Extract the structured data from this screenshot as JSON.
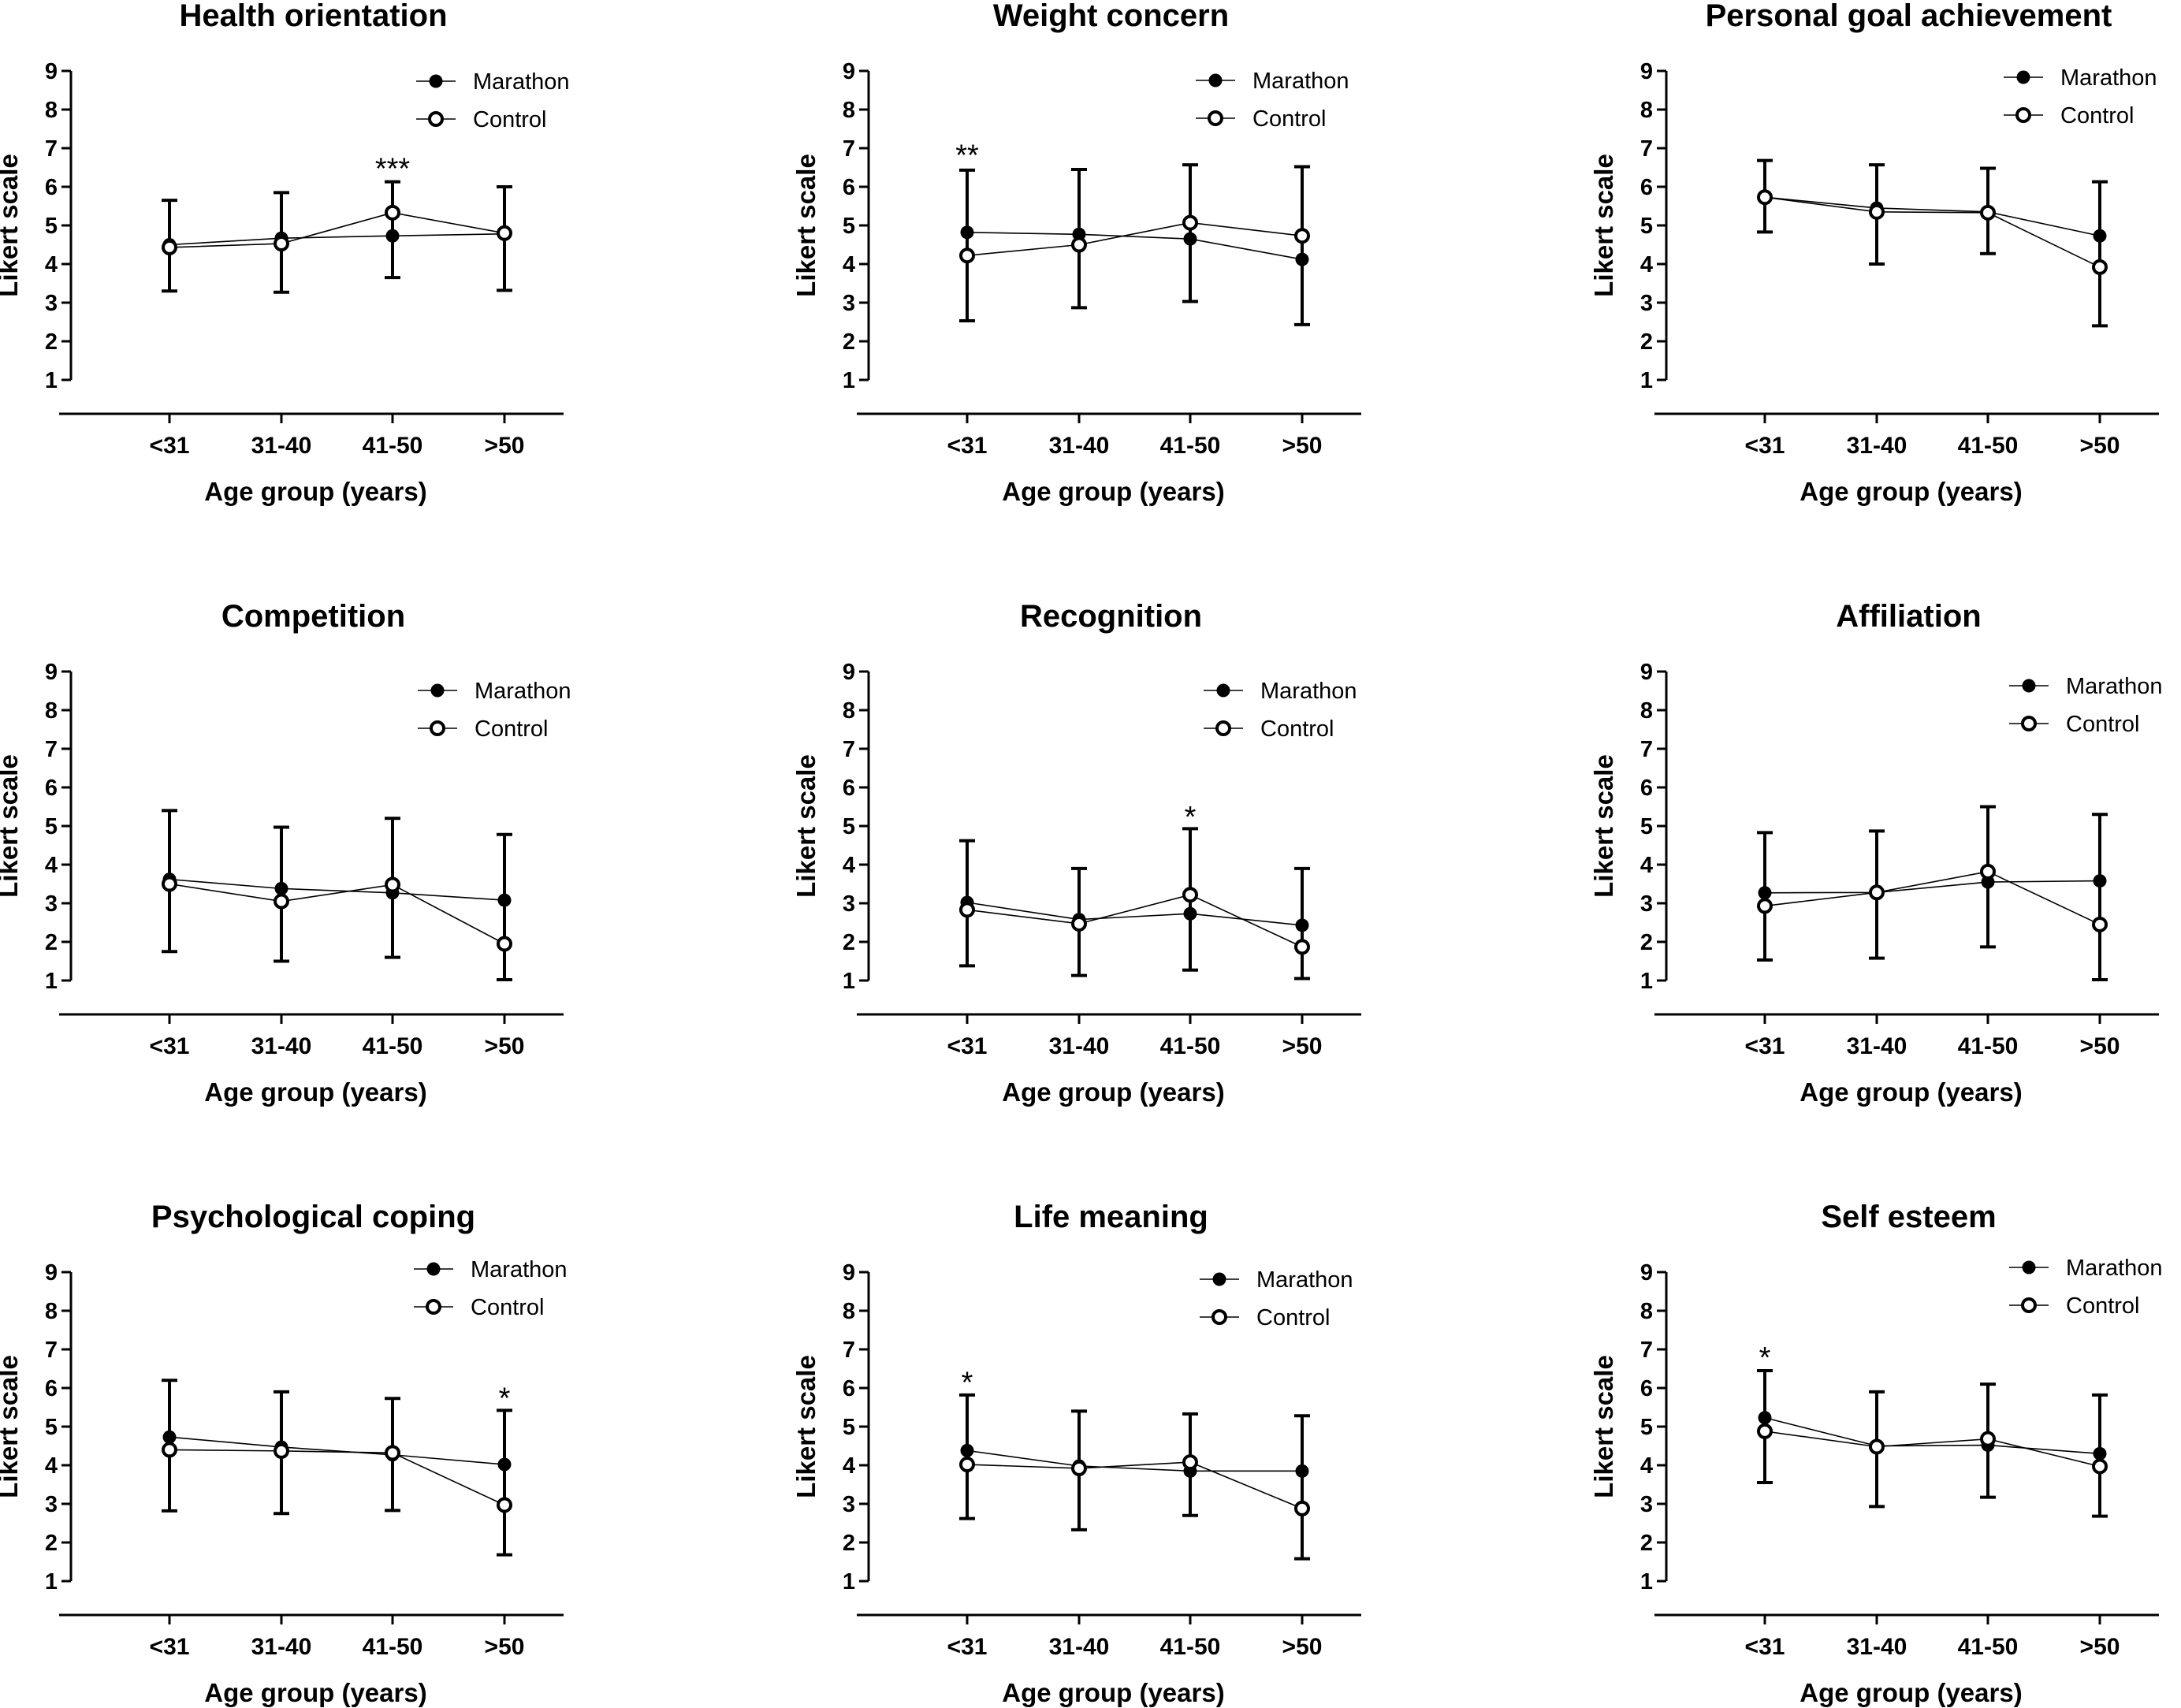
{
  "figure": {
    "categories": [
      "<31",
      "31-40",
      "41-50",
      ">50"
    ],
    "xlabel": "Age group (years)",
    "ylabel": "Likert scale",
    "legend": [
      "Marathon",
      "Control"
    ]
  },
  "chart_data": [
    {
      "type": "line",
      "title": "Health orientation",
      "xlabel": "Age group (years)",
      "ylabel": "Likert scale",
      "ylim": [
        1,
        9
      ],
      "yticks": [
        "1",
        "2",
        "3",
        "4",
        "5",
        "6",
        "7",
        "8",
        "9"
      ],
      "categories": [
        "<31",
        "31-40",
        "41-50",
        ">50"
      ],
      "series": [
        {
          "name": "Marathon",
          "values": [
            4.5,
            4.67,
            4.73,
            4.78
          ]
        },
        {
          "name": "Control",
          "values": [
            4.43,
            4.53,
            5.33,
            4.8
          ]
        }
      ],
      "error_bars": {
        "upper": [
          5.65,
          5.85,
          6.13,
          6.0
        ],
        "lower": [
          3.3,
          3.27,
          3.65,
          3.32
        ]
      },
      "annotations": [
        {
          "category": "41-50",
          "value": 6.5,
          "text": "***"
        }
      ],
      "legend_position": "top-right"
    },
    {
      "type": "line",
      "title": "Weight concern",
      "xlabel": "Age group (years)",
      "ylabel": "Likert scale",
      "ylim": [
        1,
        9
      ],
      "yticks": [
        "1",
        "2",
        "3",
        "4",
        "5",
        "6",
        "7",
        "8",
        "9"
      ],
      "categories": [
        "<31",
        "31-40",
        "41-50",
        ">50"
      ],
      "series": [
        {
          "name": "Marathon",
          "values": [
            4.82,
            4.77,
            4.65,
            4.12
          ]
        },
        {
          "name": "Control",
          "values": [
            4.22,
            4.5,
            5.07,
            4.73
          ]
        }
      ],
      "error_bars": {
        "upper": [
          6.43,
          6.45,
          6.57,
          6.52
        ],
        "lower": [
          2.53,
          2.87,
          3.03,
          2.43
        ]
      },
      "annotations": [
        {
          "category": "<31",
          "value": 6.85,
          "text": "**"
        }
      ],
      "legend_position": "top-right"
    },
    {
      "type": "line",
      "title": "Personal goal achievement",
      "xlabel": "Age group (years)",
      "ylabel": "Likert scale",
      "ylim": [
        1,
        9
      ],
      "yticks": [
        "1",
        "2",
        "3",
        "4",
        "5",
        "6",
        "7",
        "8",
        "9"
      ],
      "categories": [
        "<31",
        "31-40",
        "41-50",
        ">50"
      ],
      "series": [
        {
          "name": "Marathon",
          "values": [
            5.73,
            5.45,
            5.35,
            4.73
          ]
        },
        {
          "name": "Control",
          "values": [
            5.73,
            5.35,
            5.33,
            3.92
          ]
        }
      ],
      "error_bars": {
        "upper": [
          6.68,
          6.57,
          6.48,
          6.13
        ],
        "lower": [
          4.83,
          4.0,
          4.27,
          2.4
        ]
      },
      "annotations": [],
      "legend_position": "top-right"
    },
    {
      "type": "line",
      "title": "Competition",
      "xlabel": "Age group (years)",
      "ylabel": "Likert scale",
      "ylim": [
        1,
        9
      ],
      "yticks": [
        "1",
        "2",
        "3",
        "4",
        "5",
        "6",
        "7",
        "8",
        "9"
      ],
      "categories": [
        "<31",
        "31-40",
        "41-50",
        ">50"
      ],
      "series": [
        {
          "name": "Marathon",
          "values": [
            3.62,
            3.38,
            3.27,
            3.08
          ]
        },
        {
          "name": "Control",
          "values": [
            3.5,
            3.05,
            3.48,
            1.95
          ]
        }
      ],
      "error_bars": {
        "upper": [
          5.4,
          4.97,
          5.2,
          4.78
        ],
        "lower": [
          1.75,
          1.5,
          1.6,
          1.02
        ]
      },
      "annotations": [],
      "legend_position": "top-right"
    },
    {
      "type": "line",
      "title": "Recognition",
      "xlabel": "Age group (years)",
      "ylabel": "Likert scale",
      "ylim": [
        1,
        9
      ],
      "yticks": [
        "1",
        "2",
        "3",
        "4",
        "5",
        "6",
        "7",
        "8",
        "9"
      ],
      "categories": [
        "<31",
        "31-40",
        "41-50",
        ">50"
      ],
      "series": [
        {
          "name": "Marathon",
          "values": [
            3.02,
            2.58,
            2.73,
            2.43
          ]
        },
        {
          "name": "Control",
          "values": [
            2.83,
            2.47,
            3.22,
            1.87
          ]
        }
      ],
      "error_bars": {
        "upper": [
          4.62,
          3.9,
          4.93,
          3.9
        ],
        "lower": [
          1.38,
          1.13,
          1.27,
          1.05
        ]
      },
      "annotations": [
        {
          "category": "41-50",
          "value": 5.27,
          "text": "*"
        }
      ],
      "legend_position": "top-right"
    },
    {
      "type": "line",
      "title": "Affiliation",
      "xlabel": "Age group (years)",
      "ylabel": "Likert scale",
      "ylim": [
        1,
        9
      ],
      "yticks": [
        "1",
        "2",
        "3",
        "4",
        "5",
        "6",
        "7",
        "8",
        "9"
      ],
      "categories": [
        "<31",
        "31-40",
        "41-50",
        ">50"
      ],
      "series": [
        {
          "name": "Marathon",
          "values": [
            3.27,
            3.28,
            3.55,
            3.58
          ]
        },
        {
          "name": "Control",
          "values": [
            2.93,
            3.28,
            3.82,
            2.45
          ]
        }
      ],
      "error_bars": {
        "upper": [
          4.83,
          4.87,
          5.5,
          5.3
        ],
        "lower": [
          1.53,
          1.58,
          1.87,
          1.02
        ]
      },
      "annotations": [],
      "legend_position": "top-right"
    },
    {
      "type": "line",
      "title": "Psychological coping",
      "xlabel": "Age group (years)",
      "ylabel": "Likert scale",
      "ylim": [
        1,
        9
      ],
      "yticks": [
        "1",
        "2",
        "3",
        "4",
        "5",
        "6",
        "7",
        "8",
        "9"
      ],
      "categories": [
        "<31",
        "31-40",
        "41-50",
        ">50"
      ],
      "series": [
        {
          "name": "Marathon",
          "values": [
            4.73,
            4.47,
            4.27,
            4.02
          ]
        },
        {
          "name": "Control",
          "values": [
            4.4,
            4.37,
            4.32,
            2.97
          ]
        }
      ],
      "error_bars": {
        "upper": [
          6.2,
          5.9,
          5.73,
          5.42
        ],
        "lower": [
          2.82,
          2.75,
          2.83,
          1.68
        ]
      },
      "annotations": [
        {
          "category": ">50",
          "value": 5.77,
          "text": "*"
        }
      ],
      "legend_position": "top-right"
    },
    {
      "type": "line",
      "title": "Life meaning",
      "xlabel": "Age group (years)",
      "ylabel": "Likert scale",
      "ylim": [
        1,
        9
      ],
      "yticks": [
        "1",
        "2",
        "3",
        "4",
        "5",
        "6",
        "7",
        "8",
        "9"
      ],
      "categories": [
        "<31",
        "31-40",
        "41-50",
        ">50"
      ],
      "series": [
        {
          "name": "Marathon",
          "values": [
            4.38,
            3.98,
            3.85,
            3.85
          ]
        },
        {
          "name": "Control",
          "values": [
            4.02,
            3.92,
            4.08,
            2.88
          ]
        }
      ],
      "error_bars": {
        "upper": [
          5.82,
          5.4,
          5.33,
          5.28
        ],
        "lower": [
          2.62,
          2.33,
          2.7,
          1.58
        ]
      },
      "annotations": [
        {
          "category": "<31",
          "value": 6.17,
          "text": "*"
        }
      ],
      "legend_position": "top-right"
    },
    {
      "type": "line",
      "title": "Self esteem",
      "xlabel": "Age group (years)",
      "ylabel": "Likert scale",
      "ylim": [
        1,
        9
      ],
      "yticks": [
        "1",
        "2",
        "3",
        "4",
        "5",
        "6",
        "7",
        "8",
        "9"
      ],
      "categories": [
        "<31",
        "31-40",
        "41-50",
        ">50"
      ],
      "series": [
        {
          "name": "Marathon",
          "values": [
            5.23,
            4.5,
            4.52,
            4.3
          ]
        },
        {
          "name": "Control",
          "values": [
            4.88,
            4.48,
            4.68,
            3.97
          ]
        }
      ],
      "error_bars": {
        "upper": [
          6.45,
          5.9,
          6.1,
          5.82
        ],
        "lower": [
          3.55,
          2.93,
          3.17,
          2.68
        ]
      },
      "annotations": [
        {
          "category": "<31",
          "value": 6.82,
          "text": "*"
        }
      ],
      "legend_position": "top-right"
    }
  ]
}
